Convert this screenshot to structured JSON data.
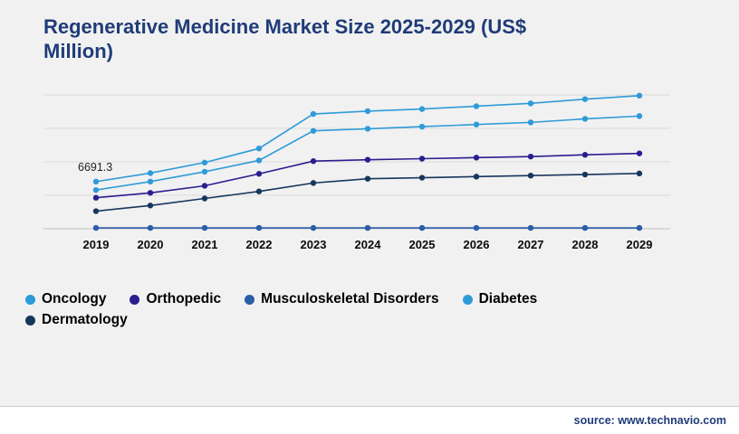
{
  "title": "Regenerative Medicine Market Size 2025-2029 (US$ Million)",
  "source": "source: www.technavio.com",
  "chart_data": {
    "type": "line",
    "title": "Regenerative Medicine Market Size 2025-2029 (US$ Million)",
    "x": [
      2019,
      2020,
      2021,
      2022,
      2023,
      2024,
      2025,
      2026,
      2027,
      2028,
      2029
    ],
    "xlabel": "",
    "ylabel": "",
    "ylim": [
      0,
      19000
    ],
    "grid": true,
    "legend_position": "bottom",
    "annotations": [
      {
        "text": "6691.3",
        "series": "Oncology",
        "x": 2019
      }
    ],
    "series": [
      {
        "name": "Oncology",
        "color": "#2E9BD9",
        "values": [
          6691.3,
          7900,
          9400,
          11400,
          16300,
          16700,
          17000,
          17400,
          17800,
          18400,
          18900
        ]
      },
      {
        "name": "Orthopedic",
        "color": "#2A1E8F",
        "values": [
          4400,
          5100,
          6100,
          7800,
          9600,
          9800,
          9950,
          10100,
          10250,
          10500,
          10700
        ]
      },
      {
        "name": "Musculoskeletal Disorders",
        "color": "#2B5DA8",
        "values": [
          120,
          120,
          120,
          120,
          120,
          120,
          120,
          120,
          120,
          120,
          120
        ]
      },
      {
        "name": "Diabetes",
        "color": "#2E9BD9",
        "values": [
          5500,
          6700,
          8100,
          9700,
          13900,
          14200,
          14500,
          14800,
          15100,
          15600,
          16000
        ]
      },
      {
        "name": "Dermatology",
        "color": "#16365C",
        "values": [
          2500,
          3300,
          4300,
          5300,
          6500,
          7100,
          7250,
          7400,
          7550,
          7700,
          7850
        ]
      }
    ]
  }
}
